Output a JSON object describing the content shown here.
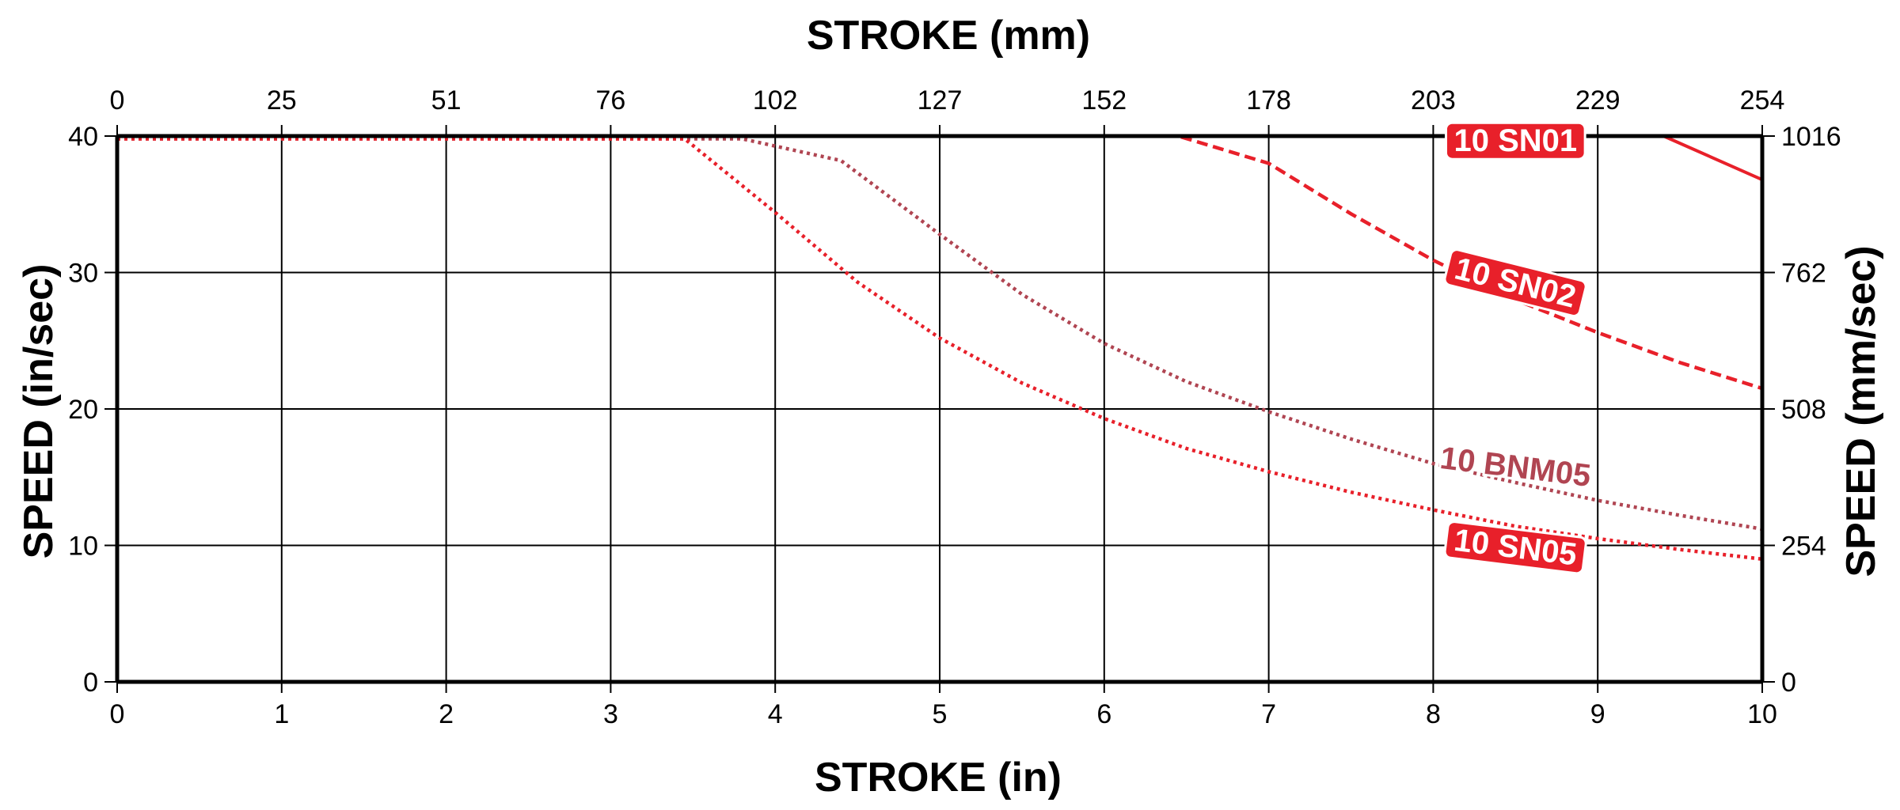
{
  "chart_data": {
    "type": "line",
    "title": "",
    "xlabel_bottom": "STROKE (in)",
    "xlabel_top": "STROKE (mm)",
    "ylabel_left": "SPEED (in/sec)",
    "ylabel_right": "SPEED (mm/sec)",
    "xlim": [
      0,
      10
    ],
    "ylim": [
      0,
      40
    ],
    "grid": true,
    "x_ticks_bottom": [
      "0",
      "1",
      "2",
      "3",
      "4",
      "5",
      "6",
      "7",
      "8",
      "9",
      "10"
    ],
    "x_ticks_top": [
      "0",
      "25",
      "51",
      "76",
      "102",
      "127",
      "152",
      "178",
      "203",
      "229",
      "254"
    ],
    "y_ticks_left": [
      "0",
      "10",
      "20",
      "30",
      "40"
    ],
    "y_ticks_right": [
      "0",
      "254",
      "508",
      "762",
      "1016"
    ],
    "series": [
      {
        "name": "10 SN01",
        "color": "#e8202a",
        "style": "solid",
        "x": [
          0,
          9.4,
          10
        ],
        "y": [
          40,
          40,
          36.8
        ]
      },
      {
        "name": "10 SN02",
        "color": "#e8202a",
        "style": "dashed",
        "x": [
          0,
          6.45,
          7.0,
          7.5,
          8.0,
          8.5,
          9.0,
          9.5,
          10
        ],
        "y": [
          40,
          40,
          38.0,
          34.3,
          30.9,
          28.0,
          25.6,
          23.4,
          21.5
        ]
      },
      {
        "name": "10 BNM05",
        "color": "#b04552",
        "style": "dotted",
        "x": [
          0,
          3.8,
          4.4,
          5.0,
          5.5,
          6.0,
          6.5,
          7.0,
          7.5,
          8.0,
          8.5,
          9.0,
          9.5,
          10
        ],
        "y": [
          39.8,
          39.8,
          38.2,
          32.8,
          28.4,
          24.8,
          22.0,
          19.8,
          17.8,
          16.0,
          14.6,
          13.3,
          12.2,
          11.2
        ]
      },
      {
        "name": "10 SN05",
        "color": "#e8202a",
        "style": "dotted",
        "x": [
          0,
          3.45,
          4.0,
          4.5,
          5.0,
          5.5,
          6.0,
          6.5,
          7.0,
          7.5,
          8.0,
          8.5,
          9.0,
          9.5,
          10
        ],
        "y": [
          39.8,
          39.8,
          34.4,
          29.3,
          25.2,
          21.9,
          19.3,
          17.1,
          15.4,
          13.9,
          12.6,
          11.4,
          10.5,
          9.7,
          9.0
        ]
      }
    ],
    "series_labels": [
      {
        "series": "10 SN01",
        "text": "10 SN01",
        "at_x": 8.5,
        "at_y": 39.7,
        "rotate": 0,
        "boxed": true
      },
      {
        "series": "10 SN02",
        "text": "10 SN02",
        "at_x": 8.5,
        "at_y": 29.3,
        "rotate": 14,
        "boxed": true
      },
      {
        "series": "10 BNM05",
        "text": "10 BNM05",
        "at_x": 8.5,
        "at_y": 15.8,
        "rotate": 7,
        "boxed": false
      },
      {
        "series": "10 SN05",
        "text": "10 SN05",
        "at_x": 8.5,
        "at_y": 9.9,
        "rotate": 7,
        "boxed": true
      }
    ]
  }
}
